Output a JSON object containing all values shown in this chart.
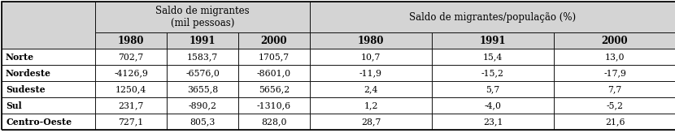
{
  "title_left": "Saldo de migrantes\n(mil pessoas)",
  "title_right": "Saldo de migrantes/população (%)",
  "years": [
    "1980",
    "1991",
    "2000"
  ],
  "regions": [
    "Norte",
    "Nordeste",
    "Sudeste",
    "Sul",
    "Centro-Oeste"
  ],
  "saldo_migrantes": [
    [
      "702,7",
      "1583,7",
      "1705,7"
    ],
    [
      "-4126,9",
      "-6576,0",
      "-8601,0"
    ],
    [
      "1250,4",
      "3655,8",
      "5656,2"
    ],
    [
      "231,7",
      "-890,2",
      "-1310,6"
    ],
    [
      "727,1",
      "805,3",
      "828,0"
    ]
  ],
  "saldo_pct": [
    [
      "10,7",
      "15,4",
      "13,0"
    ],
    [
      "-11,9",
      "-15,2",
      "-17,9"
    ],
    [
      "2,4",
      "5,7",
      "7,7"
    ],
    [
      "1,2",
      "-4,0",
      "-5,2"
    ],
    [
      "28,7",
      "23,1",
      "21,6"
    ]
  ],
  "header_bg": "#d4d4d4",
  "row_bg": "#ffffff",
  "border_color": "#000000",
  "text_color": "#000000",
  "font_size": 7.8,
  "header_font_size": 8.5
}
